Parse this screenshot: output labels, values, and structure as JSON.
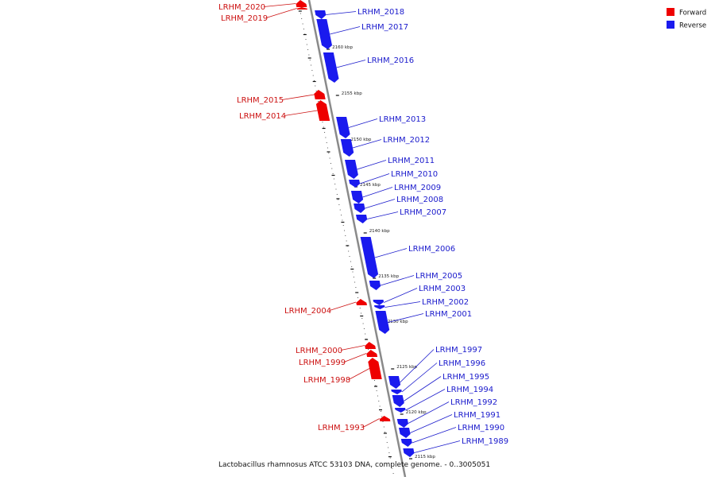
{
  "caption": "Lactobacillus rhamnosus ATCC 53103 DNA, complete genome. - 0..3005051",
  "legend": {
    "items": [
      {
        "label": "Forward",
        "color": "#ee0000"
      },
      {
        "label": "Reverse",
        "color": "#1a1aee"
      }
    ]
  },
  "colors": {
    "forward": "#ee0000",
    "reverse": "#1a1aee",
    "forward_label": "#cc1111",
    "reverse_label": "#1a1acc",
    "backbone": "#8a8a8a"
  },
  "axis_ticks": [
    "2160 kbp",
    "2155 kbp",
    "2150 kbp",
    "2145 kbp",
    "2140 kbp",
    "2135 kbp",
    "2130 kbp",
    "2125 kbp",
    "2120 kbp",
    "2115 kbp"
  ],
  "genes": [
    {
      "name": "LRHM_2020",
      "strand": "forward"
    },
    {
      "name": "LRHM_2019",
      "strand": "forward"
    },
    {
      "name": "LRHM_2018",
      "strand": "reverse"
    },
    {
      "name": "LRHM_2017",
      "strand": "reverse"
    },
    {
      "name": "LRHM_2016",
      "strand": "reverse"
    },
    {
      "name": "LRHM_2015",
      "strand": "forward"
    },
    {
      "name": "LRHM_2014",
      "strand": "forward"
    },
    {
      "name": "LRHM_2013",
      "strand": "reverse"
    },
    {
      "name": "LRHM_2012",
      "strand": "reverse"
    },
    {
      "name": "LRHM_2011",
      "strand": "reverse"
    },
    {
      "name": "LRHM_2010",
      "strand": "reverse"
    },
    {
      "name": "LRHM_2009",
      "strand": "reverse"
    },
    {
      "name": "LRHM_2008",
      "strand": "reverse"
    },
    {
      "name": "LRHM_2007",
      "strand": "reverse"
    },
    {
      "name": "LRHM_2006",
      "strand": "reverse"
    },
    {
      "name": "LRHM_2005",
      "strand": "reverse"
    },
    {
      "name": "LRHM_2004",
      "strand": "forward"
    },
    {
      "name": "LRHM_2003",
      "strand": "reverse"
    },
    {
      "name": "LRHM_2002",
      "strand": "reverse"
    },
    {
      "name": "LRHM_2001",
      "strand": "reverse"
    },
    {
      "name": "LRHM_2000",
      "strand": "forward"
    },
    {
      "name": "LRHM_1999",
      "strand": "forward"
    },
    {
      "name": "LRHM_1998",
      "strand": "forward"
    },
    {
      "name": "LRHM_1997",
      "strand": "reverse"
    },
    {
      "name": "LRHM_1996",
      "strand": "reverse"
    },
    {
      "name": "LRHM_1995",
      "strand": "reverse"
    },
    {
      "name": "LRHM_1994",
      "strand": "reverse"
    },
    {
      "name": "LRHM_1993",
      "strand": "forward"
    },
    {
      "name": "LRHM_1992",
      "strand": "reverse"
    },
    {
      "name": "LRHM_1991",
      "strand": "reverse"
    },
    {
      "name": "LRHM_1990",
      "strand": "reverse"
    },
    {
      "name": "LRHM_1989",
      "strand": "reverse"
    }
  ]
}
